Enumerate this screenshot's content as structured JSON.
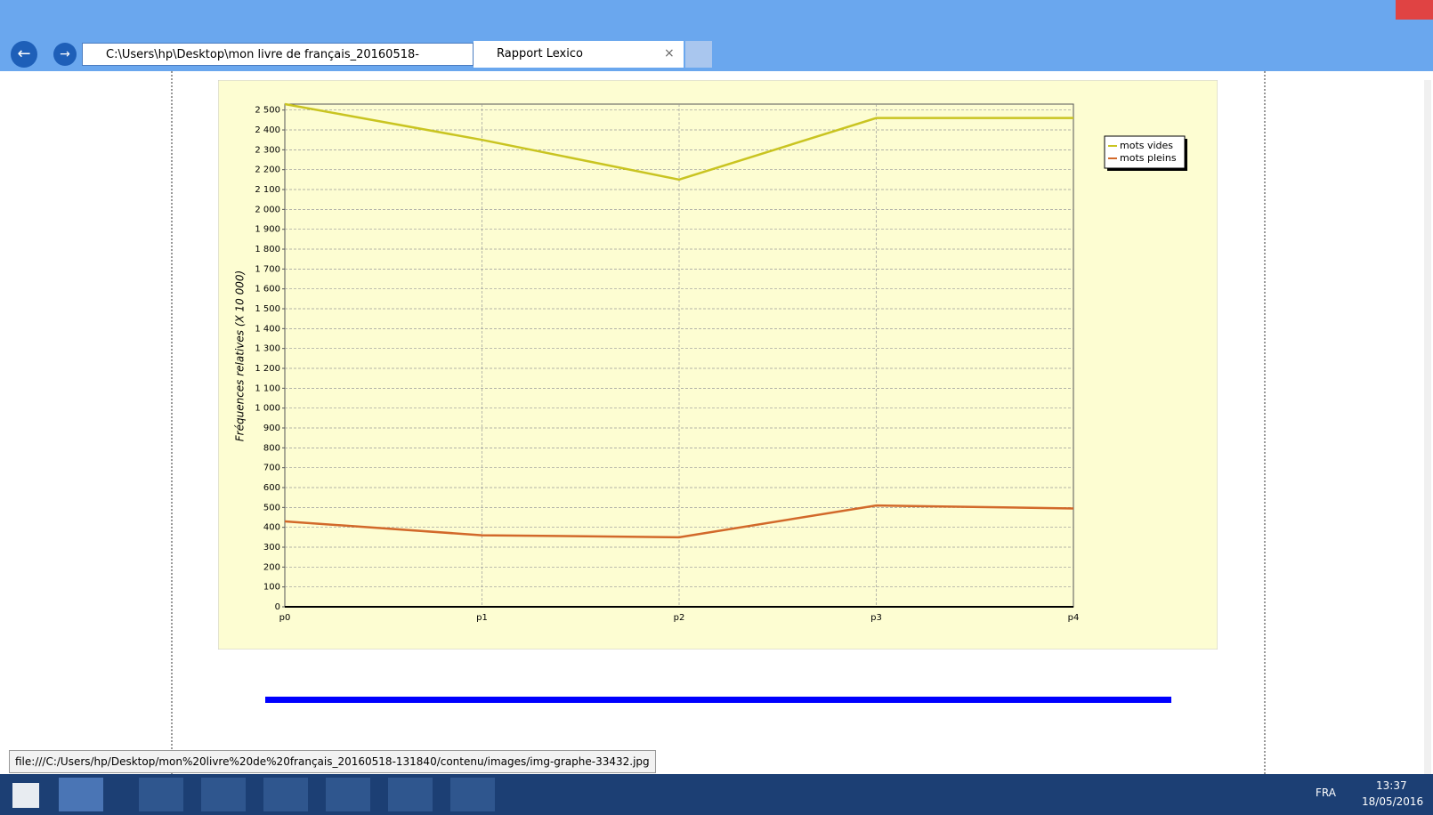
{
  "browser": {
    "address": "C:\\Users\\hp\\Desktop\\mon livre de français_20160518-",
    "tab_title": "Rapport Lexico",
    "status_url": "file:///C:/Users/hp/Desktop/mon%20livre%20de%20français_20160518-131840/contenu/images/img-graphe-33432.jpg"
  },
  "taskbar": {
    "language": "FRA",
    "time": "13:37",
    "date": "18/05/2016"
  },
  "chart_data": {
    "type": "line",
    "y_label": "Fréquences relatives (X 10 000)",
    "categories": [
      "p0",
      "p1",
      "p2",
      "p3",
      "p4"
    ],
    "series": [
      {
        "name": "mots vides",
        "color": "#c9c421",
        "values": [
          2530,
          2350,
          2150,
          2460,
          2460
        ]
      },
      {
        "name": "mots pleins",
        "color": "#d2692a",
        "values": [
          430,
          360,
          350,
          510,
          495
        ]
      }
    ],
    "ylim": [
      0,
      2530
    ],
    "yticks": [
      0,
      100,
      200,
      300,
      400,
      500,
      600,
      700,
      800,
      900,
      {
        "value": 1000,
        "label": "1 000"
      },
      {
        "value": 1100,
        "label": "1 100"
      },
      {
        "value": 1200,
        "label": "1 200"
      },
      {
        "value": 1300,
        "label": "1 300"
      },
      {
        "value": 1400,
        "label": "1 400"
      },
      {
        "value": 1500,
        "label": "1 500"
      },
      {
        "value": 1600,
        "label": "1 600"
      },
      {
        "value": 1700,
        "label": "1 700"
      },
      {
        "value": 1800,
        "label": "1 800"
      },
      {
        "value": 1900,
        "label": "1 900"
      },
      {
        "value": 2000,
        "label": "2 000"
      },
      {
        "value": 2100,
        "label": "2 100"
      },
      {
        "value": 2200,
        "label": "2 200"
      },
      {
        "value": 2300,
        "label": "2 300"
      },
      {
        "value": 2400,
        "label": "2 400"
      },
      {
        "value": 2500,
        "label": "2 500"
      }
    ],
    "grid": true,
    "legend": "top-right"
  }
}
